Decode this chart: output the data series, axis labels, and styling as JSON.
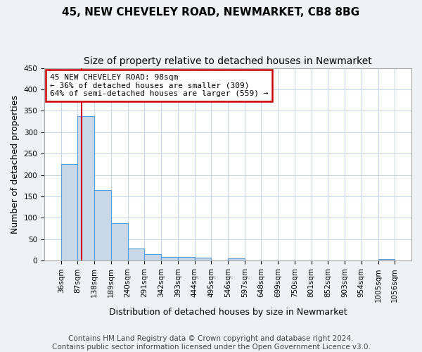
{
  "title_line1": "45, NEW CHEVELEY ROAD, NEWMARKET, CB8 8BG",
  "title_line2": "Size of property relative to detached houses in Newmarket",
  "xlabel": "Distribution of detached houses by size in Newmarket",
  "ylabel": "Number of detached properties",
  "footer_line1": "Contains HM Land Registry data © Crown copyright and database right 2024.",
  "footer_line2": "Contains public sector information licensed under the Open Government Licence v3.0.",
  "annotation_line1": "45 NEW CHEVELEY ROAD: 98sqm",
  "annotation_line2": "← 36% of detached houses are smaller (309)",
  "annotation_line3": "64% of semi-detached houses are larger (559) →",
  "property_size_sqm": 98,
  "bar_edges": [
    36,
    87,
    138,
    189,
    240,
    291,
    342,
    393,
    444,
    495,
    546,
    597,
    648,
    699,
    750,
    801,
    852,
    903,
    954,
    1005,
    1056
  ],
  "bar_heights": [
    226,
    337,
    165,
    88,
    28,
    15,
    8,
    8,
    7,
    0,
    5,
    0,
    0,
    0,
    0,
    0,
    0,
    0,
    0,
    3
  ],
  "bar_color": "#c8d8e8",
  "bar_edge_color": "#5b9bd5",
  "vline_color": "#cc0000",
  "vline_x": 98,
  "ylim": [
    0,
    450
  ],
  "yticks": [
    0,
    50,
    100,
    150,
    200,
    250,
    300,
    350,
    400,
    450
  ],
  "bg_color": "#eef2f7",
  "plot_bg_color": "#ffffff",
  "grid_color": "#c8d8e8",
  "annotation_box_color": "#cc0000",
  "title_fontsize": 11,
  "subtitle_fontsize": 10,
  "axis_label_fontsize": 9,
  "tick_fontsize": 7.5,
  "footer_fontsize": 7.5
}
